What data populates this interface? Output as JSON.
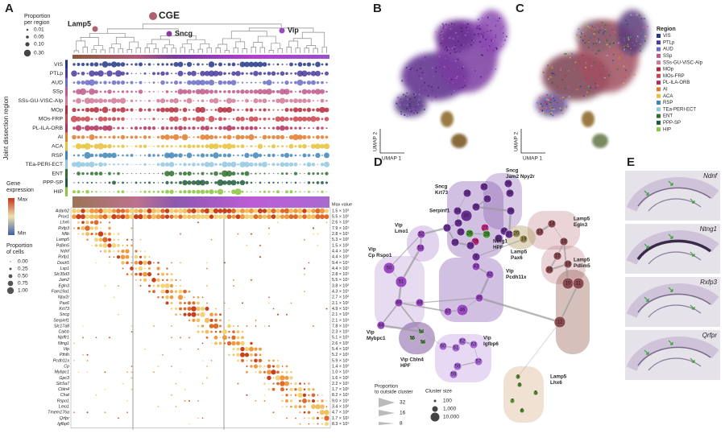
{
  "panels": {
    "a": "A",
    "b": "B",
    "c": "C",
    "d": "D",
    "e": "E"
  },
  "panel_a": {
    "proportion_legend": {
      "title_lines": [
        "Proportion",
        "per region"
      ],
      "sizes": [
        "0.01",
        "0.05",
        "0.10",
        "0.30"
      ]
    },
    "dendrogram_labels": [
      "Lamp5",
      "CGE",
      "Sncg",
      "Vip"
    ],
    "y_axis_label": "Joint dissection region",
    "regions": [
      "VIS",
      "PTLp",
      "AUD",
      "SSp",
      "SSs-GU-VISC-AIp",
      "MOp",
      "MOs-FRP",
      "PL-ILA-ORB",
      "AI",
      "ACA",
      "RSP",
      "TEa-PERI-ECT",
      "ENT",
      "PPP-SP",
      "HIP"
    ],
    "region_colors": [
      "#24378a",
      "#4a3a9e",
      "#6b6cc6",
      "#c0588c",
      "#d07a9a",
      "#b52a3a",
      "#c9444e",
      "#b0305c",
      "#e07b2a",
      "#e6c23a",
      "#3f86b8",
      "#92c8e2",
      "#2f6e2f",
      "#1f5a3c",
      "#8cc63f"
    ],
    "gene_legend": {
      "title_lines": [
        "Gene",
        "expression"
      ],
      "max": "Max",
      "min": "Min"
    },
    "cells_legend": {
      "title_lines": [
        "Proportion",
        "of cells"
      ],
      "levels": [
        "0.00",
        "0.25",
        "0.50",
        "0.75",
        "1.00"
      ]
    },
    "max_value_header": "Max value",
    "genes": [
      "Adarb2",
      "Prox1",
      "Lhx6",
      "Rxfp3",
      "Nfib",
      "Lamp5",
      "Pdlim5",
      "Ndnf",
      "Rxfp1",
      "Dock5",
      "Lsp1",
      "Slc35d3",
      "Jam2",
      "Egln3",
      "Fam19a1",
      "Npy2r",
      "Pax6",
      "Krt73",
      "Sncg",
      "Serpinf1",
      "Slc17a8",
      "Calcb",
      "Npffr1",
      "Ntng1",
      "Vip",
      "Pthlh",
      "Pcdh11x",
      "Cp",
      "Mybpc1",
      "Gpc3",
      "Slc5a7",
      "Cbln4",
      "Chat",
      "Rspo1",
      "Lmo1",
      "Tmem176a",
      "Qrfpr",
      "Igfbp6"
    ],
    "max_values": [
      "1.5 × 10³",
      "5.5 × 10²",
      "2.6 × 10²",
      "7.9 × 10¹",
      "2.8 × 10¹",
      "5.3 × 10²",
      "1.5 × 10²",
      "4.4 × 10²",
      "4.4 × 10²",
      "9.4 × 10¹",
      "4.4 × 10¹",
      "2.8 × 10¹",
      "5.5 × 10¹",
      "3.8 × 10²",
      "4.3 × 10¹",
      "2.7 × 10²",
      "2.1 × 10²",
      "4.9 × 10¹",
      "2.1 × 10³",
      "2.1 × 10¹",
      "7.8 × 10¹",
      "2.3 × 10¹",
      "5.1 × 10¹",
      "2.6 × 10²",
      "5.4 × 10³",
      "5.2 × 10¹",
      "5.9 × 10¹",
      "1.4 × 10²",
      "1.0 × 10¹",
      "1.6 × 10²",
      "2.2 × 10¹",
      "1.7 × 10²",
      "8.2 × 10¹",
      "9.0 × 10¹",
      "3.4 × 10²",
      "4.7 × 10²",
      "1.7 × 10¹",
      "8.3 × 10¹"
    ]
  },
  "panel_bc": {
    "umap_x": "UMAP 1",
    "umap_y": "UMAP 2",
    "legend_title": "Region"
  },
  "panel_d": {
    "nodes": [
      "32",
      "39",
      "31",
      "38",
      "33",
      "35",
      "36",
      "34",
      "30",
      "25",
      "21",
      "22",
      "26",
      "27",
      "28",
      "29",
      "23",
      "24",
      "4",
      "40",
      "41",
      "37",
      "19",
      "20",
      "13",
      "14",
      "15",
      "17",
      "16",
      "18",
      "10",
      "11",
      "12",
      "52",
      "53",
      "50",
      "51",
      "49",
      "48",
      "43",
      "42",
      "45",
      "46",
      "47",
      "44",
      "54",
      "55",
      "56",
      "60",
      "61",
      "62",
      "63",
      "57",
      "58",
      "59",
      "9",
      "8",
      "5",
      "7",
      "6"
    ],
    "groups": [
      {
        "lines": [
          "Sncg",
          "Krt73"
        ],
        "color": "#6a2f96"
      },
      {
        "lines": [
          "Sncg",
          "Jam2 Npy2r"
        ],
        "color": "#6a2f96"
      },
      {
        "lines": [
          "Serpinf1"
        ],
        "color": "#a32ca8"
      },
      {
        "lines": [
          "Ntng1",
          "HPF"
        ],
        "color": "#c02a86"
      },
      {
        "lines": [
          "Lamp5",
          "Egln3"
        ],
        "color": "#b0506a"
      },
      {
        "lines": [
          "Lamp5",
          "Pax6"
        ],
        "color": "#6e5c2c"
      },
      {
        "lines": [
          "Vip",
          "Lmo1"
        ],
        "color": "#9a48c4"
      },
      {
        "lines": [
          "Vip",
          "Cp Rspo1"
        ],
        "color": "#9a48c4"
      },
      {
        "lines": [
          "Lamp5",
          "Pdlim5"
        ],
        "color": "#b0506a"
      },
      {
        "lines": [
          "Vip",
          "Pcdh11x"
        ],
        "color": "#9a48c4"
      },
      {
        "lines": [
          "Vip",
          "Mybpc1"
        ],
        "color": "#9a48c4"
      },
      {
        "lines": [
          "Vip",
          "Igfbp6"
        ],
        "color": "#9a48c4"
      },
      {
        "lines": [
          "Vip Cbln4",
          "HPF"
        ],
        "color": "#7a3aa0"
      },
      {
        "lines": [
          "Lamp5",
          "Lhx6"
        ],
        "color": "#c07a48"
      }
    ],
    "edge_legend": {
      "title_lines": [
        "Proportion",
        "to outside cluster"
      ],
      "values": [
        "32",
        "16",
        "8"
      ]
    },
    "size_legend": {
      "title": "Cluster size",
      "values": [
        "100",
        "1,000",
        "10,000"
      ]
    }
  },
  "panel_e": {
    "genes": [
      "Ndnf",
      "Ntng1",
      "Rxfp3",
      "Qrfpr"
    ]
  }
}
